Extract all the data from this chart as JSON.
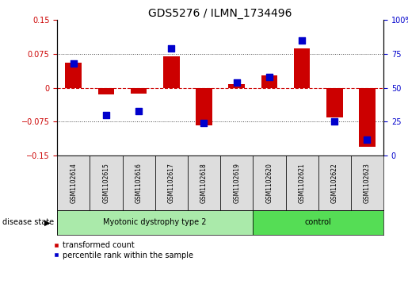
{
  "title": "GDS5276 / ILMN_1734496",
  "categories": [
    "GSM1102614",
    "GSM1102615",
    "GSM1102616",
    "GSM1102617",
    "GSM1102618",
    "GSM1102619",
    "GSM1102620",
    "GSM1102621",
    "GSM1102622",
    "GSM1102623"
  ],
  "bar_values": [
    0.055,
    -0.015,
    -0.012,
    0.07,
    -0.083,
    0.008,
    0.028,
    0.088,
    -0.065,
    -0.13
  ],
  "blue_values": [
    68,
    30,
    33,
    79,
    24,
    54,
    58,
    85,
    25,
    12
  ],
  "ylim_left": [
    -0.15,
    0.15
  ],
  "ylim_right": [
    0,
    100
  ],
  "yticks_left": [
    -0.15,
    -0.075,
    0.0,
    0.075,
    0.15
  ],
  "yticks_right": [
    0,
    25,
    50,
    75,
    100
  ],
  "group1_label": "Myotonic dystrophy type 2",
  "group2_label": "control",
  "group1_count": 6,
  "group2_count": 4,
  "disease_state_label": "disease state",
  "legend1_label": "transformed count",
  "legend2_label": "percentile rank within the sample",
  "bar_color": "#cc0000",
  "blue_color": "#0000cc",
  "group1_bg": "#aaeaaa",
  "group2_bg": "#55dd55",
  "sample_bg": "#dddddd",
  "zero_line_color": "#cc0000",
  "dotted_color": "#444444",
  "title_fontsize": 10,
  "tick_fontsize": 7,
  "label_fontsize": 7.5
}
